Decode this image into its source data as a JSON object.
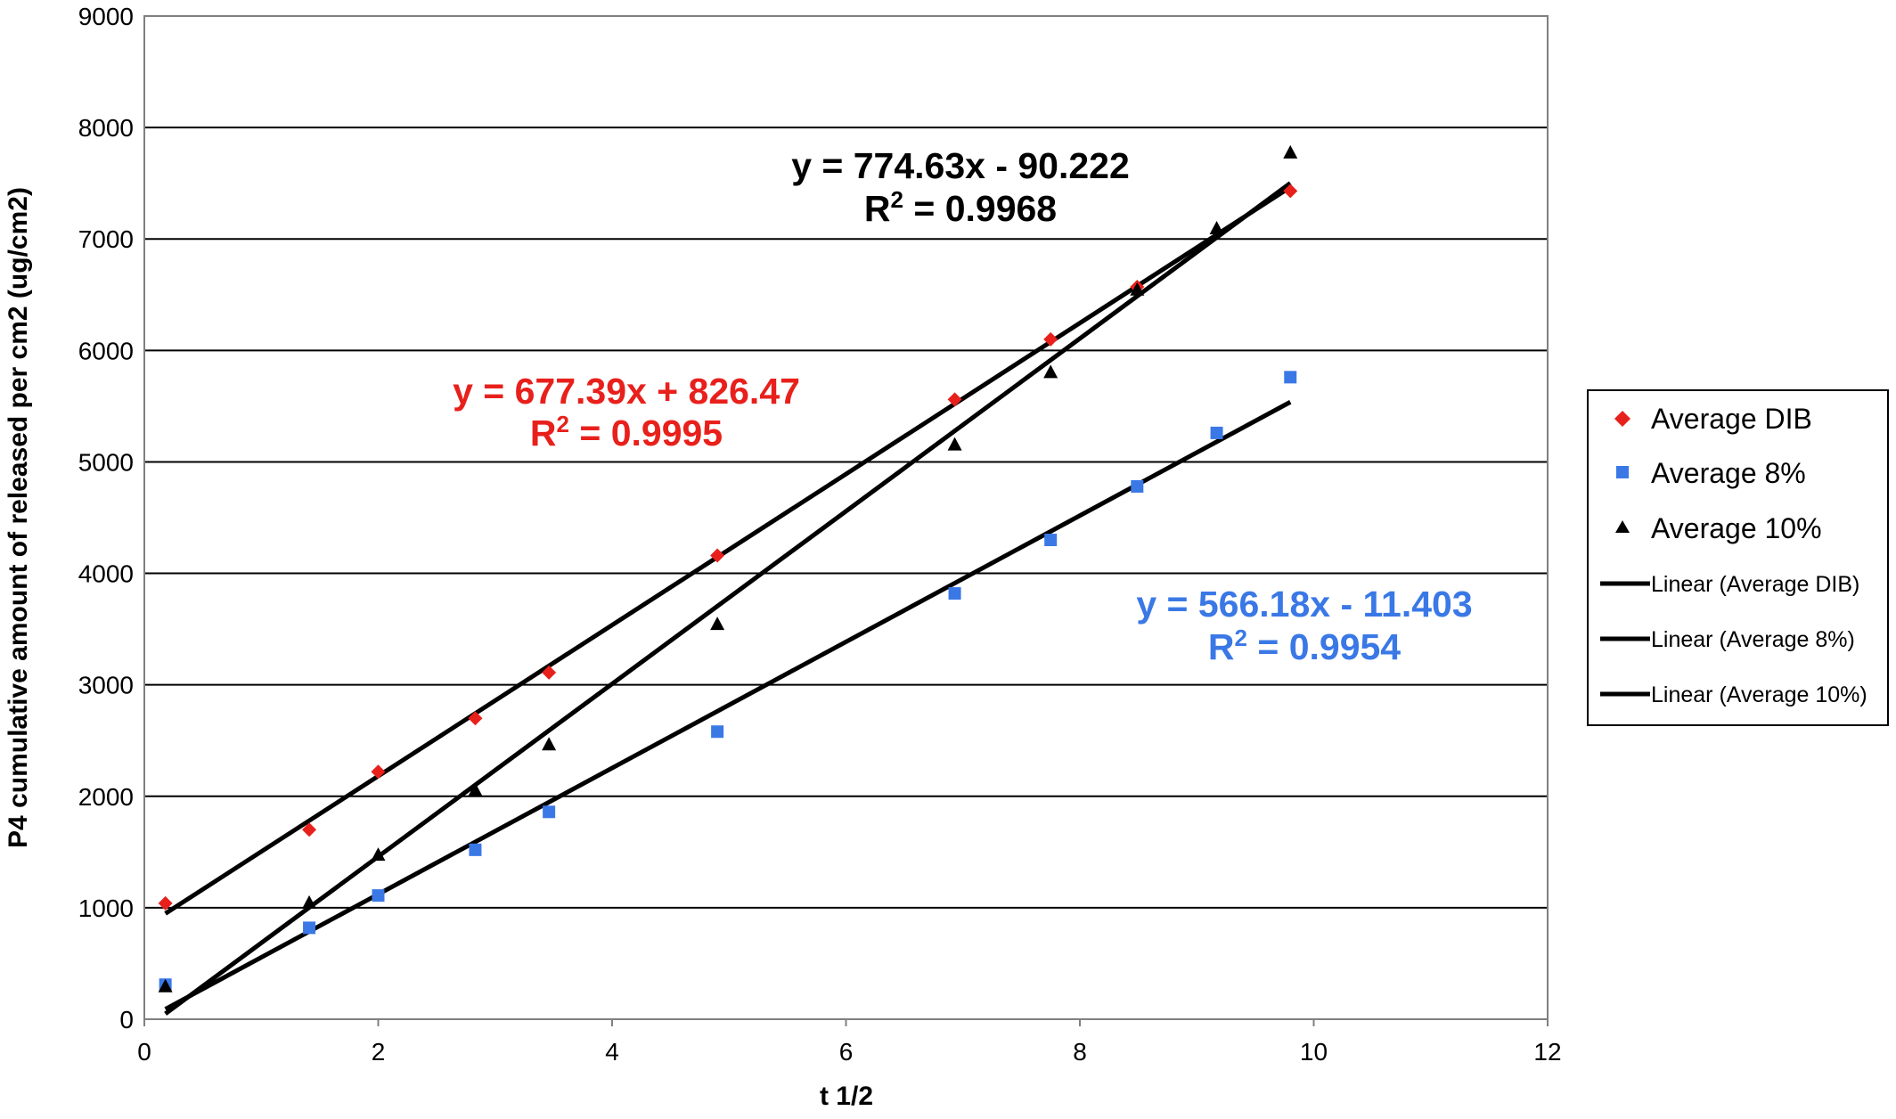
{
  "chart_data": {
    "type": "scatter",
    "title": "",
    "xlabel": "t 1/2",
    "ylabel": "P4 cumulative amount of released per cm2 (ug/cm2)",
    "xlim": [
      0,
      12
    ],
    "ylim": [
      0,
      9000
    ],
    "x_ticks": [
      "0",
      "2",
      "4",
      "6",
      "8",
      "10",
      "12"
    ],
    "y_ticks": [
      "0",
      "1000",
      "2000",
      "3000",
      "4000",
      "5000",
      "6000",
      "7000",
      "8000",
      "9000"
    ],
    "grid": "horizontal",
    "legend_position": "right",
    "series": [
      {
        "name": "Average DIB",
        "marker": "diamond",
        "color": "#e8201c",
        "x": [
          0.18,
          1.41,
          2.0,
          2.83,
          3.46,
          4.9,
          6.93,
          7.75,
          8.49,
          9.8
        ],
        "y": [
          1040,
          1700,
          2220,
          2700,
          3110,
          4160,
          5560,
          6100,
          6570,
          7430
        ]
      },
      {
        "name": "Average 8%",
        "marker": "square",
        "color": "#3a78e6",
        "x": [
          0.18,
          1.41,
          2.0,
          2.83,
          3.46,
          4.9,
          6.93,
          7.75,
          8.49,
          9.17,
          9.8
        ],
        "y": [
          310,
          820,
          1110,
          1520,
          1860,
          2580,
          3820,
          4300,
          4780,
          5260,
          5760
        ]
      },
      {
        "name": "Average 10%",
        "marker": "triangle",
        "color": "#000000",
        "x": [
          0.18,
          1.41,
          2.0,
          2.83,
          3.46,
          4.9,
          6.93,
          7.75,
          8.49,
          9.17,
          9.8
        ],
        "y": [
          290,
          1040,
          1470,
          2050,
          2460,
          3540,
          5150,
          5800,
          6540,
          7090,
          7770
        ]
      }
    ],
    "trendlines": [
      {
        "name": "Linear (Average DIB)",
        "slope": 677.39,
        "intercept": 826.47,
        "x_range": [
          0.18,
          9.8
        ],
        "color": "#000000"
      },
      {
        "name": "Linear (Average 8%)",
        "slope": 566.18,
        "intercept": -11.403,
        "x_range": [
          0.18,
          9.8
        ],
        "color": "#000000"
      },
      {
        "name": "Linear (Average 10%)",
        "slope": 774.63,
        "intercept": -90.222,
        "x_range": [
          0.18,
          9.8
        ],
        "color": "#000000"
      }
    ],
    "annotations": [
      {
        "equation": "y = 774.63x - 90.222",
        "r2_label": "R",
        "r2_sup": "2",
        "r2_value": " = 0.9968",
        "color": "#000000"
      },
      {
        "equation": "y = 677.39x + 826.47",
        "r2_label": "R",
        "r2_sup": "2",
        "r2_value": " = 0.9995",
        "color": "#e8201c"
      },
      {
        "equation": "y = 566.18x - 11.403",
        "r2_label": "R",
        "r2_sup": "2",
        "r2_value": " = 0.9954",
        "color": "#3a78e6"
      }
    ]
  }
}
